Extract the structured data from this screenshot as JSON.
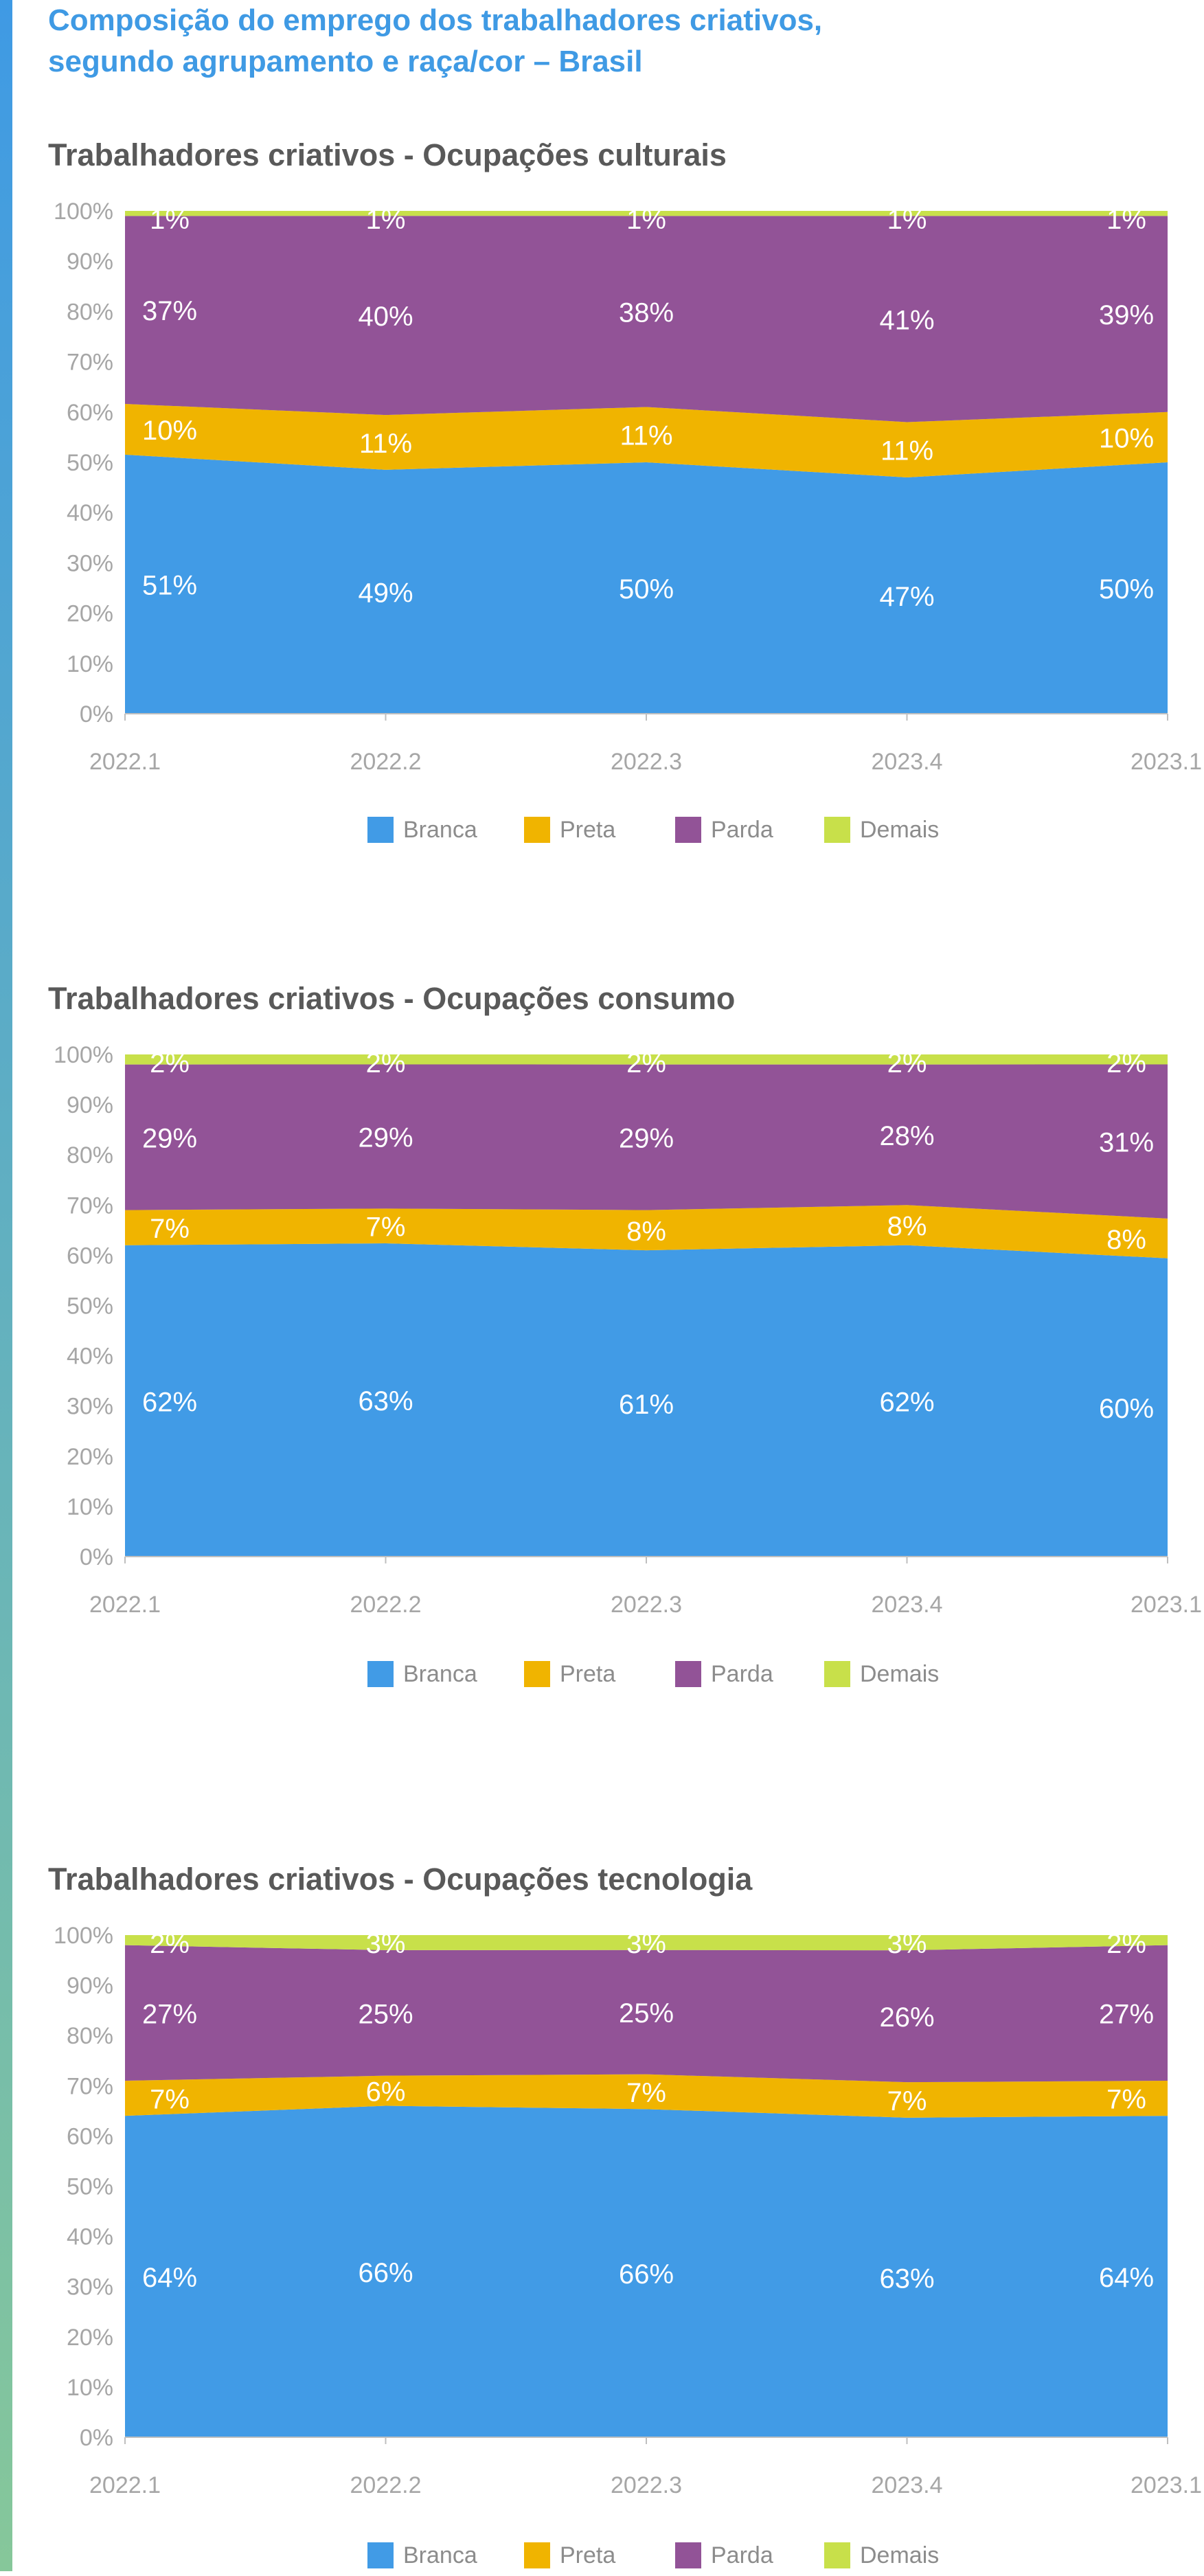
{
  "colors": {
    "accent_gradient": [
      "#3f9ae4",
      "#86c79a"
    ],
    "title": "#3f9ae4",
    "subtitle": "#595959",
    "axis_text": "#a6a6a6",
    "legend_text": "#8c8c8c",
    "series": {
      "Branca": "#419be6",
      "Preta": "#f0b400",
      "Parda": "#925397",
      "Demais": "#c8e04a"
    }
  },
  "title_lines": [
    "Composição do emprego dos trabalhadores criativos,",
    "segundo agrupamento e raça/cor – Brasil"
  ],
  "legend_entries": [
    "Branca",
    "Preta",
    "Parda",
    "Demais"
  ],
  "chart_data": [
    {
      "type": "area",
      "stacked": true,
      "title": "Trabalhadores criativos - Ocupações culturais",
      "x": [
        "2022.1",
        "2022.2",
        "2022.3",
        "2023.4",
        "2023.1"
      ],
      "y_ticks": [
        "0%",
        "10%",
        "20%",
        "30%",
        "40%",
        "50%",
        "60%",
        "70%",
        "80%",
        "90%",
        "100%"
      ],
      "ylim": [
        0,
        100
      ],
      "legend_position": "bottom",
      "series": [
        {
          "name": "Branca",
          "values": [
            51,
            49,
            50,
            47,
            50
          ],
          "labels": [
            "51%",
            "49%",
            "50%",
            "47%",
            "50%"
          ]
        },
        {
          "name": "Preta",
          "values": [
            10,
            11,
            11,
            11,
            10
          ],
          "labels": [
            "10%",
            "11%",
            "11%",
            "11%",
            "10%"
          ]
        },
        {
          "name": "Parda",
          "values": [
            37,
            40,
            38,
            41,
            39
          ],
          "labels": [
            "37%",
            "40%",
            "38%",
            "41%",
            "39%"
          ]
        },
        {
          "name": "Demais",
          "values": [
            1,
            1,
            1,
            1,
            1
          ],
          "labels": [
            "1%",
            "1%",
            "1%",
            "1%",
            "1%"
          ]
        }
      ]
    },
    {
      "type": "area",
      "stacked": true,
      "title": "Trabalhadores criativos - Ocupações consumo",
      "x": [
        "2022.1",
        "2022.2",
        "2022.3",
        "2023.4",
        "2023.1"
      ],
      "y_ticks": [
        "0%",
        "10%",
        "20%",
        "30%",
        "40%",
        "50%",
        "60%",
        "70%",
        "80%",
        "90%",
        "100%"
      ],
      "ylim": [
        0,
        100
      ],
      "legend_position": "bottom",
      "series": [
        {
          "name": "Branca",
          "values": [
            62,
            63,
            61,
            62,
            60
          ],
          "labels": [
            "62%",
            "63%",
            "61%",
            "62%",
            "60%"
          ]
        },
        {
          "name": "Preta",
          "values": [
            7,
            7,
            8,
            8,
            8
          ],
          "labels": [
            "7%",
            "7%",
            "8%",
            "8%",
            "8%"
          ]
        },
        {
          "name": "Parda",
          "values": [
            29,
            29,
            29,
            28,
            31
          ],
          "labels": [
            "29%",
            "29%",
            "29%",
            "28%",
            "31%"
          ]
        },
        {
          "name": "Demais",
          "values": [
            2,
            2,
            2,
            2,
            2
          ],
          "labels": [
            "2%",
            "2%",
            "2%",
            "2%",
            "2%"
          ]
        }
      ]
    },
    {
      "type": "area",
      "stacked": true,
      "title": "Trabalhadores criativos - Ocupações tecnologia",
      "x": [
        "2022.1",
        "2022.2",
        "2022.3",
        "2023.4",
        "2023.1"
      ],
      "y_ticks": [
        "0%",
        "10%",
        "20%",
        "30%",
        "40%",
        "50%",
        "60%",
        "70%",
        "80%",
        "90%",
        "100%"
      ],
      "ylim": [
        0,
        100
      ],
      "legend_position": "bottom",
      "series": [
        {
          "name": "Branca",
          "values": [
            64,
            66,
            66,
            63,
            64
          ],
          "labels": [
            "64%",
            "66%",
            "66%",
            "63%",
            "64%"
          ]
        },
        {
          "name": "Preta",
          "values": [
            7,
            6,
            7,
            7,
            7
          ],
          "labels": [
            "7%",
            "6%",
            "7%",
            "7%",
            "7%"
          ]
        },
        {
          "name": "Parda",
          "values": [
            27,
            25,
            25,
            26,
            27
          ],
          "labels": [
            "27%",
            "25%",
            "25%",
            "26%",
            "27%"
          ]
        },
        {
          "name": "Demais",
          "values": [
            2,
            3,
            3,
            3,
            2
          ],
          "labels": [
            "2%",
            "3%",
            "3%",
            "3%",
            "2%"
          ]
        }
      ]
    }
  ]
}
